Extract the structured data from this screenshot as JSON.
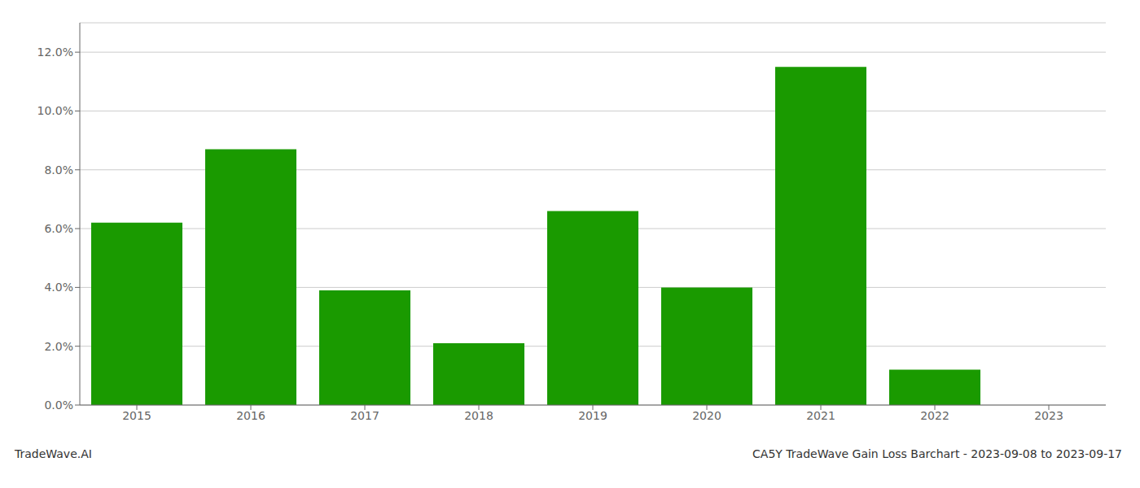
{
  "chart_data": {
    "type": "bar",
    "categories": [
      "2015",
      "2016",
      "2017",
      "2018",
      "2019",
      "2020",
      "2021",
      "2022",
      "2023"
    ],
    "values": [
      0.062,
      0.087,
      0.039,
      0.021,
      0.066,
      0.04,
      0.115,
      0.012,
      0.0
    ],
    "color": "#1a9a00",
    "ylim": [
      0,
      0.13
    ],
    "yticks": [
      {
        "value": 0.0,
        "label": "0.0%"
      },
      {
        "value": 0.02,
        "label": "2.0%"
      },
      {
        "value": 0.04,
        "label": "4.0%"
      },
      {
        "value": 0.06,
        "label": "6.0%"
      },
      {
        "value": 0.08,
        "label": "8.0%"
      },
      {
        "value": 0.1,
        "label": "10.0%"
      },
      {
        "value": 0.12,
        "label": "12.0%"
      }
    ],
    "grid": true,
    "annotations": [
      "TradeWave.AI",
      "CA5Y TradeWave Gain Loss Barchart - 2023-09-08 to 2023-09-17"
    ]
  }
}
